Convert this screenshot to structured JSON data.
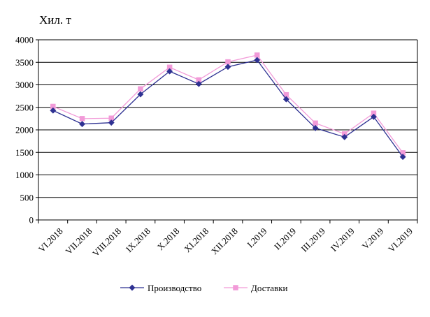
{
  "chart_data": {
    "type": "line",
    "ylabel": "Хил. т",
    "categories": [
      "VI.2018",
      "VII.2018",
      "VIII.2018",
      "IX.2018",
      "X.2018",
      "XI.2018",
      "XII.2018",
      "I.2019",
      "II.2019",
      "III.2019",
      "IV.2019",
      "V.2019",
      "VI.2019"
    ],
    "series": [
      {
        "name": "Производство",
        "color": "#2e3192",
        "marker": "diamond",
        "values": [
          2430,
          2130,
          2160,
          2790,
          3300,
          3020,
          3400,
          3550,
          2680,
          2040,
          1840,
          2290,
          1400
        ]
      },
      {
        "name": "Доставки",
        "color": "#f29ad8",
        "marker": "square",
        "values": [
          2520,
          2250,
          2260,
          2910,
          3390,
          3110,
          3510,
          3660,
          2780,
          2150,
          1910,
          2370,
          1490
        ]
      }
    ],
    "ylim": [
      0,
      4000
    ],
    "yticks": [
      0,
      500,
      1000,
      1500,
      2000,
      2500,
      3000,
      3500,
      4000
    ],
    "grid": true,
    "legend_position": "bottom"
  }
}
